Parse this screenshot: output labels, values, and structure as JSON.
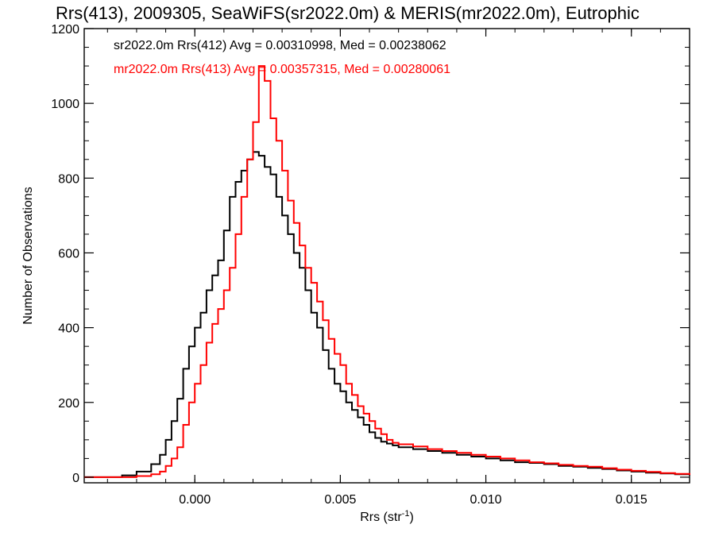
{
  "chart_data": {
    "type": "line",
    "title": "Rrs(413), 2009305, SeaWiFS(sr2022.0m) & MERIS(mr2022.0m), Eutrophic",
    "xlabel_main": "Rrs (str",
    "xlabel_sup": "-1",
    "xlabel_end": ")",
    "ylabel": "Number of Observations",
    "xlim": [
      -0.0038,
      0.017
    ],
    "ylim": [
      -15,
      1200
    ],
    "xticks": [
      0.0,
      0.005,
      0.01,
      0.015
    ],
    "xtick_labels": [
      "0.000",
      "0.005",
      "0.010",
      "0.015"
    ],
    "yticks": [
      0,
      200,
      400,
      600,
      800,
      1000,
      1200
    ],
    "ytick_labels": [
      "0",
      "200",
      "400",
      "600",
      "800",
      "1000",
      "1200"
    ],
    "grid": false,
    "legend_position": "top-left",
    "series": [
      {
        "name": "sr2022.0m Rrs(412) Avg = 0.00310998, Med = 0.00238062",
        "color": "#000000",
        "step": true,
        "x": [
          -0.0038,
          -0.003,
          -0.0025,
          -0.002,
          -0.0015,
          -0.0012,
          -0.001,
          -0.0008,
          -0.0006,
          -0.0004,
          -0.0002,
          0.0,
          0.0002,
          0.0004,
          0.0006,
          0.0008,
          0.001,
          0.0012,
          0.0014,
          0.0016,
          0.0018,
          0.002,
          0.0022,
          0.0024,
          0.0026,
          0.0028,
          0.003,
          0.0032,
          0.0034,
          0.0036,
          0.0038,
          0.004,
          0.0042,
          0.0044,
          0.0046,
          0.0048,
          0.005,
          0.0052,
          0.0054,
          0.0056,
          0.0058,
          0.006,
          0.0062,
          0.0064,
          0.0066,
          0.0068,
          0.007,
          0.0075,
          0.008,
          0.0085,
          0.009,
          0.0095,
          0.01,
          0.0105,
          0.011,
          0.0115,
          0.012,
          0.0125,
          0.013,
          0.0135,
          0.014,
          0.0145,
          0.015,
          0.0155,
          0.016,
          0.0165,
          0.017
        ],
        "y": [
          0,
          0,
          5,
          15,
          35,
          60,
          100,
          150,
          210,
          290,
          350,
          400,
          440,
          500,
          540,
          580,
          660,
          750,
          790,
          820,
          850,
          870,
          860,
          830,
          810,
          750,
          700,
          650,
          600,
          560,
          500,
          440,
          400,
          340,
          290,
          250,
          230,
          200,
          180,
          160,
          140,
          120,
          105,
          95,
          90,
          85,
          80,
          75,
          70,
          65,
          60,
          55,
          50,
          45,
          40,
          38,
          35,
          30,
          28,
          25,
          22,
          18,
          15,
          12,
          10,
          8,
          5
        ]
      },
      {
        "name": "mr2022.0m Rrs(413) Avg = 0.00357315, Med = 0.00280061",
        "color": "#ff0000",
        "step": true,
        "x": [
          -0.0038,
          -0.0025,
          -0.002,
          -0.0015,
          -0.0012,
          -0.001,
          -0.0008,
          -0.0006,
          -0.0004,
          -0.0002,
          0.0,
          0.0002,
          0.0004,
          0.0006,
          0.0008,
          0.001,
          0.0012,
          0.0014,
          0.0016,
          0.0018,
          0.002,
          0.0022,
          0.0024,
          0.0026,
          0.0028,
          0.003,
          0.0032,
          0.0034,
          0.0036,
          0.0038,
          0.004,
          0.0042,
          0.0044,
          0.0046,
          0.0048,
          0.005,
          0.0052,
          0.0054,
          0.0056,
          0.0058,
          0.006,
          0.0062,
          0.0064,
          0.0066,
          0.0068,
          0.007,
          0.0075,
          0.008,
          0.0085,
          0.009,
          0.0095,
          0.01,
          0.0105,
          0.011,
          0.0115,
          0.012,
          0.0125,
          0.013,
          0.0135,
          0.014,
          0.0145,
          0.015,
          0.0155,
          0.016,
          0.0165,
          0.017
        ],
        "y": [
          0,
          0,
          3,
          8,
          15,
          30,
          50,
          80,
          140,
          200,
          250,
          300,
          360,
          410,
          450,
          500,
          560,
          650,
          750,
          850,
          950,
          1100,
          1060,
          960,
          900,
          820,
          740,
          680,
          620,
          560,
          520,
          470,
          420,
          370,
          330,
          300,
          250,
          220,
          190,
          170,
          150,
          130,
          115,
          100,
          92,
          88,
          82,
          75,
          70,
          65,
          60,
          55,
          50,
          45,
          40,
          37,
          33,
          30,
          28,
          24,
          20,
          17,
          14,
          11,
          9,
          6
        ]
      }
    ]
  }
}
